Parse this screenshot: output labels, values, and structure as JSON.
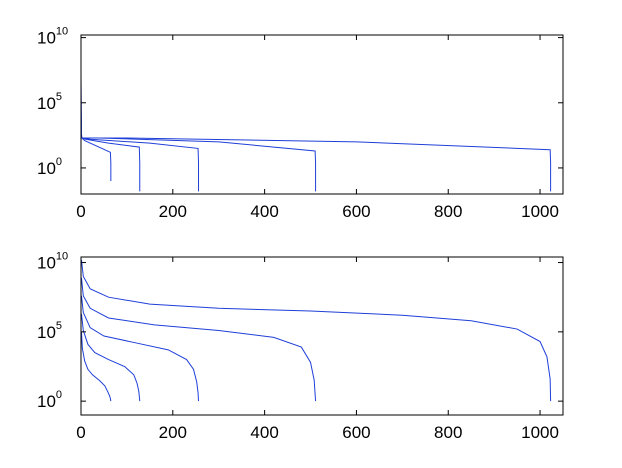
{
  "colors": {
    "line": "#1f3fd8",
    "axis": "#000000",
    "background": "#ffffff"
  },
  "chart_data": [
    {
      "type": "line",
      "title": "",
      "xlabel": "",
      "ylabel": "",
      "yscale": "log",
      "xlim": [
        0,
        1050
      ],
      "ylim_exponent": [
        -2,
        10.2
      ],
      "xticks": [
        {
          "value": 0,
          "label": "0"
        },
        {
          "value": 200,
          "label": "200"
        },
        {
          "value": 400,
          "label": "400"
        },
        {
          "value": 600,
          "label": "600"
        },
        {
          "value": 800,
          "label": "800"
        },
        {
          "value": 1000,
          "label": "1000"
        }
      ],
      "yticks": [
        {
          "exponent": 0,
          "base": "10",
          "sup": "0"
        },
        {
          "exponent": 5,
          "base": "10",
          "sup": "5"
        },
        {
          "exponent": 10,
          "base": "10",
          "sup": "10"
        }
      ],
      "grid": false,
      "series": [
        {
          "x": [
            0,
            1,
            1,
            2,
            8,
            64,
            65,
            65
          ],
          "log10_y": [
            7.0,
            3.5,
            2.6,
            2.3,
            2.1,
            1.2,
            0.4,
            -1.0
          ]
        },
        {
          "x": [
            1,
            10,
            60,
            127,
            128,
            128
          ],
          "log10_y": [
            2.3,
            2.2,
            1.9,
            1.6,
            0.4,
            -1.8
          ]
        },
        {
          "x": [
            1,
            20,
            150,
            255,
            256,
            256
          ],
          "log10_y": [
            2.3,
            2.2,
            1.9,
            1.5,
            0.4,
            -1.8
          ]
        },
        {
          "x": [
            1,
            40,
            300,
            510,
            511,
            511
          ],
          "log10_y": [
            2.3,
            2.3,
            2.0,
            1.3,
            0.4,
            -1.8
          ]
        },
        {
          "x": [
            1,
            100,
            600,
            1022,
            1023,
            1023
          ],
          "log10_y": [
            2.3,
            2.3,
            2.0,
            1.4,
            0.4,
            -1.8
          ]
        }
      ]
    },
    {
      "type": "line",
      "title": "",
      "xlabel": "",
      "ylabel": "",
      "yscale": "log",
      "xlim": [
        0,
        1050
      ],
      "ylim_exponent": [
        -1,
        10.4
      ],
      "xticks": [
        {
          "value": 0,
          "label": "0"
        },
        {
          "value": 200,
          "label": "200"
        },
        {
          "value": 400,
          "label": "400"
        },
        {
          "value": 600,
          "label": "600"
        },
        {
          "value": 800,
          "label": "800"
        },
        {
          "value": 1000,
          "label": "1000"
        }
      ],
      "yticks": [
        {
          "exponent": 0,
          "base": "10",
          "sup": "0"
        },
        {
          "exponent": 5,
          "base": "10",
          "sup": "5"
        },
        {
          "exponent": 10,
          "base": "10",
          "sup": "10"
        }
      ],
      "grid": false,
      "series": [
        {
          "x": [
            1,
            3,
            8,
            15,
            25,
            40,
            52,
            58,
            62,
            64,
            65
          ],
          "log10_y": [
            5.0,
            3.8,
            2.9,
            2.3,
            1.9,
            1.5,
            1.1,
            0.7,
            0.4,
            0.2,
            0.0
          ]
        },
        {
          "x": [
            1,
            5,
            15,
            30,
            60,
            95,
            115,
            122,
            126,
            128
          ],
          "log10_y": [
            6.3,
            5.1,
            4.1,
            3.5,
            3.0,
            2.5,
            1.9,
            1.3,
            0.7,
            0.0
          ]
        },
        {
          "x": [
            1,
            5,
            20,
            50,
            120,
            190,
            230,
            245,
            252,
            255,
            256
          ],
          "log10_y": [
            7.6,
            6.4,
            5.3,
            4.7,
            4.2,
            3.7,
            3.0,
            2.3,
            1.4,
            0.6,
            0.0
          ]
        },
        {
          "x": [
            1,
            5,
            20,
            60,
            160,
            300,
            420,
            480,
            500,
            508,
            511
          ],
          "log10_y": [
            8.9,
            7.6,
            6.7,
            6.0,
            5.5,
            5.1,
            4.6,
            3.9,
            2.8,
            1.5,
            0.0
          ]
        },
        {
          "x": [
            1,
            5,
            20,
            60,
            150,
            300,
            500,
            700,
            850,
            950,
            1000,
            1015,
            1022,
            1023
          ],
          "log10_y": [
            10.2,
            9.0,
            8.1,
            7.5,
            7.0,
            6.7,
            6.5,
            6.2,
            5.8,
            5.2,
            4.3,
            3.2,
            1.6,
            0.0
          ]
        }
      ]
    }
  ]
}
